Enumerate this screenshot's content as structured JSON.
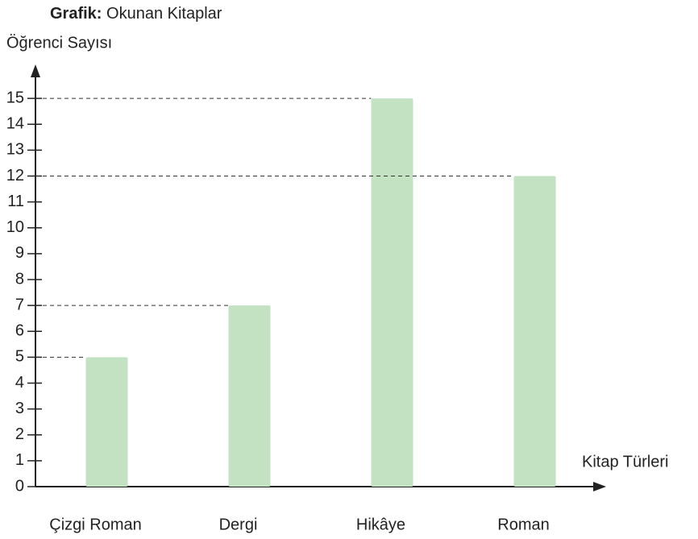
{
  "chart_data": {
    "type": "bar",
    "title_prefix": "Grafik:",
    "title": "Okunan Kitaplar",
    "y_label": "Öğrenci Sayısı",
    "x_label": "Kitap Türleri",
    "categories": [
      "Çizgi Roman",
      "Dergi",
      "Hikâye",
      "Roman"
    ],
    "values": [
      5,
      7,
      15,
      12
    ],
    "color": "#c2e2c2",
    "ylim": [
      0,
      16
    ],
    "yticks": [
      0,
      1,
      2,
      3,
      4,
      5,
      6,
      7,
      8,
      9,
      10,
      11,
      12,
      13,
      14,
      15
    ],
    "reference_lines": true
  }
}
